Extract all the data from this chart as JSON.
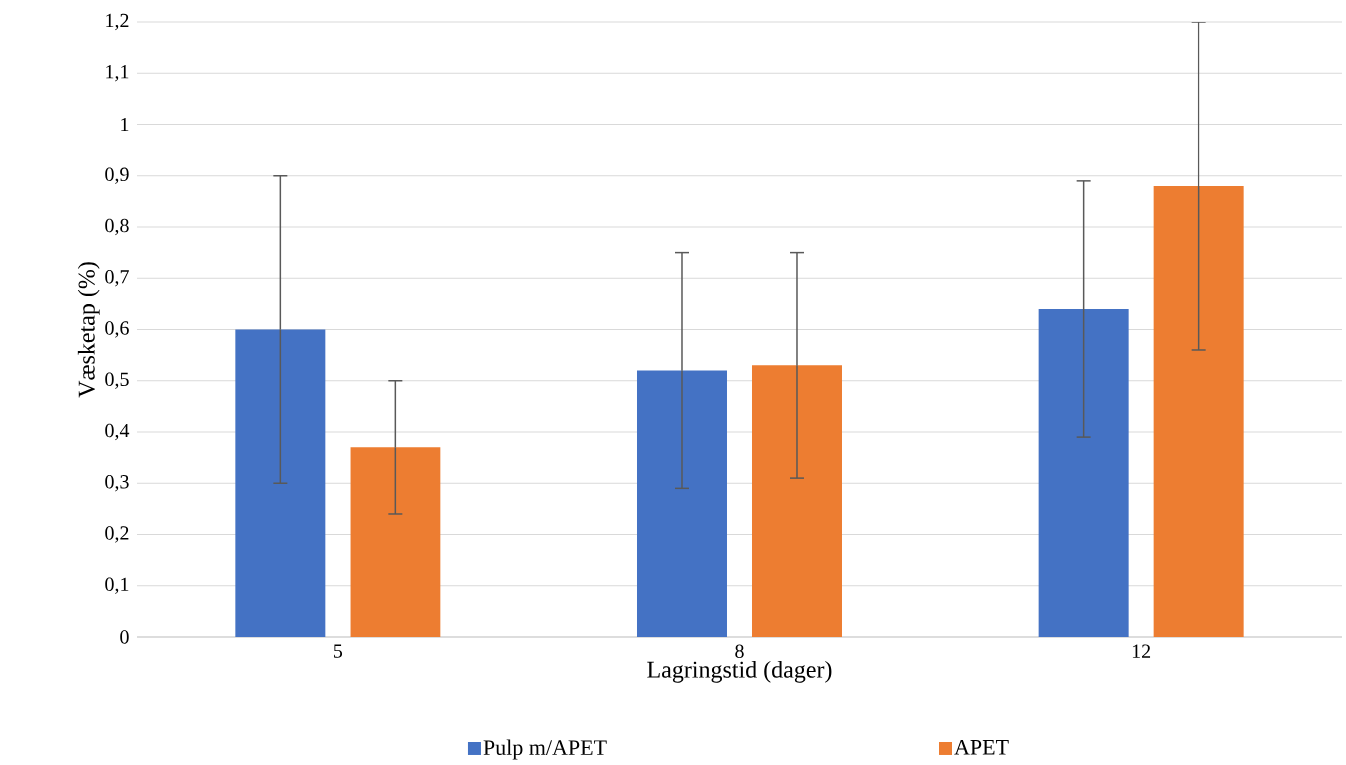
{
  "chart_data": {
    "type": "bar",
    "xlabel": "Lagringstid (dager)",
    "ylabel": "Væsketap (%)",
    "categories": [
      "5",
      "8",
      "12"
    ],
    "series": [
      {
        "name": "Pulp m/APET",
        "color": "#4472c4",
        "values": [
          0.6,
          0.52,
          0.64
        ],
        "errors": [
          0.3,
          0.23,
          0.25
        ]
      },
      {
        "name": "APET",
        "color": "#ed7d31",
        "values": [
          0.37,
          0.53,
          0.88
        ],
        "errors": [
          0.13,
          0.22,
          0.32
        ]
      }
    ],
    "ylim": [
      0,
      1.2
    ],
    "yticks": [
      0,
      {
        "value": 0.1,
        "label": "0,1"
      },
      {
        "value": 0.2,
        "label": "0,2"
      },
      {
        "value": 0.3,
        "label": "0,3"
      },
      {
        "value": 0.4,
        "label": "0,4"
      },
      {
        "value": 0.5,
        "label": "0,5"
      },
      {
        "value": 0.6,
        "label": "0,6"
      },
      {
        "value": 0.7,
        "label": "0,7"
      },
      {
        "value": 0.8,
        "label": "0,8"
      },
      {
        "value": 0.9,
        "label": "0,9"
      },
      1,
      {
        "value": 1.1,
        "label": "1,1"
      },
      {
        "value": 1.2,
        "label": "1,2"
      }
    ],
    "grid": "y",
    "legend": "bottom"
  }
}
